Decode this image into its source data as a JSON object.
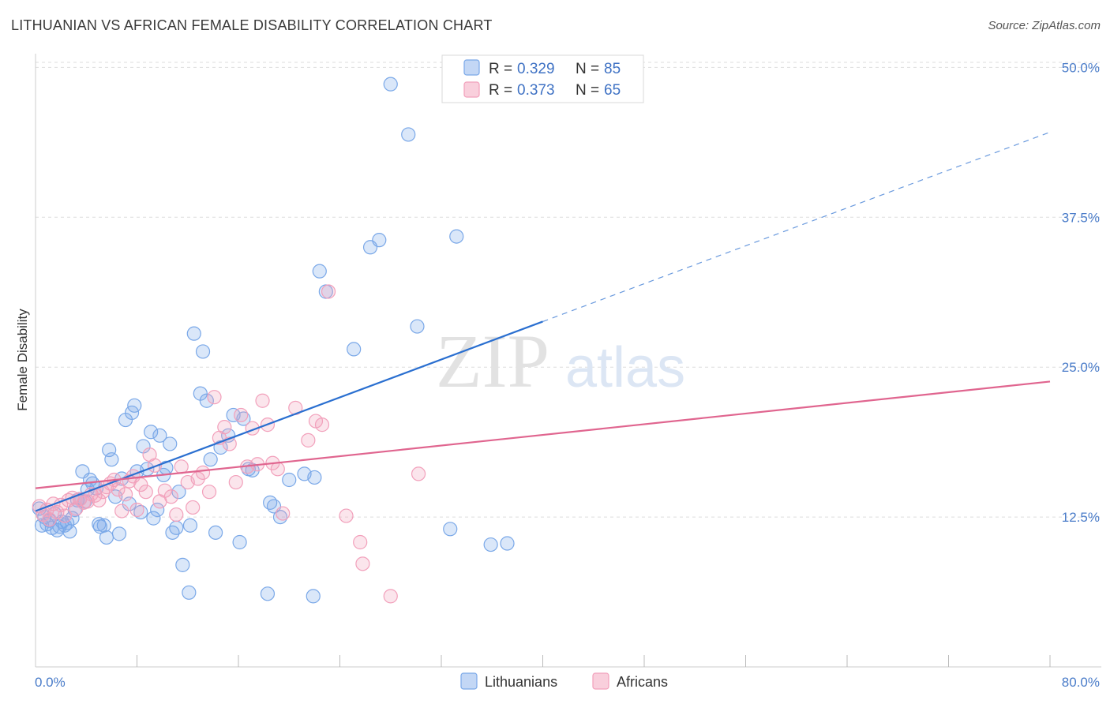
{
  "title": "LITHUANIAN VS AFRICAN FEMALE DISABILITY CORRELATION CHART",
  "source": "Source: ZipAtlas.com",
  "watermark": {
    "zip": "ZIP",
    "atlas": "atlas"
  },
  "colors": {
    "blue": "#7aa8e8",
    "blue_line": "#2a6fd0",
    "pink": "#f2a0bb",
    "pink_line": "#e0658f",
    "tick_text": "#4a7cc9",
    "grid": "#dddddd"
  },
  "legend": {
    "r_label": "R =",
    "n_label": "N =",
    "entries": [
      {
        "r": "0.329",
        "n": "85"
      },
      {
        "r": "0.373",
        "n": "65"
      }
    ]
  },
  "chart_data": {
    "type": "scatter",
    "xlabel": "",
    "ylabel": "Female Disability",
    "xlim": [
      0,
      80
    ],
    "ylim": [
      0,
      52
    ],
    "x_tick_labels": [
      "0.0%",
      "80.0%"
    ],
    "y_ticks": [
      12.5,
      25.0,
      37.5,
      50.0
    ],
    "y_tick_labels": [
      "12.5%",
      "25.0%",
      "37.5%",
      "50.0%"
    ],
    "grid": true,
    "legend_position": "top-center",
    "series": [
      {
        "name": "Lithuanians",
        "color": "#7aa8e8",
        "trend": {
          "x": [
            0,
            40
          ],
          "y": [
            13.0,
            28.8
          ],
          "dashed_to": [
            80,
            44.6
          ]
        },
        "points": [
          [
            0.3,
            13.2
          ],
          [
            0.5,
            11.8
          ],
          [
            0.7,
            12.5
          ],
          [
            0.9,
            11.9
          ],
          [
            1.1,
            12.2
          ],
          [
            1.3,
            11.6
          ],
          [
            1.5,
            12.8
          ],
          [
            1.7,
            11.4
          ],
          [
            1.9,
            11.7
          ],
          [
            2.1,
            12.1
          ],
          [
            2.3,
            11.8
          ],
          [
            2.5,
            12.0
          ],
          [
            2.7,
            11.3
          ],
          [
            2.9,
            12.4
          ],
          [
            3.1,
            13.1
          ],
          [
            3.3,
            13.9
          ],
          [
            3.5,
            14.0
          ],
          [
            3.7,
            16.3
          ],
          [
            3.9,
            13.8
          ],
          [
            4.1,
            14.8
          ],
          [
            4.3,
            15.6
          ],
          [
            4.5,
            15.3
          ],
          [
            4.8,
            14.9
          ],
          [
            5.0,
            11.9
          ],
          [
            5.1,
            11.7
          ],
          [
            5.4,
            11.8
          ],
          [
            5.6,
            10.8
          ],
          [
            5.8,
            18.1
          ],
          [
            6.0,
            17.3
          ],
          [
            6.3,
            14.2
          ],
          [
            6.6,
            11.1
          ],
          [
            6.8,
            15.7
          ],
          [
            7.1,
            20.6
          ],
          [
            7.4,
            13.6
          ],
          [
            7.6,
            21.2
          ],
          [
            7.8,
            21.8
          ],
          [
            8.0,
            16.3
          ],
          [
            8.3,
            12.9
          ],
          [
            8.5,
            18.4
          ],
          [
            8.8,
            16.5
          ],
          [
            9.1,
            19.6
          ],
          [
            9.3,
            12.4
          ],
          [
            9.6,
            13.1
          ],
          [
            9.8,
            19.3
          ],
          [
            10.1,
            16.0
          ],
          [
            10.3,
            16.6
          ],
          [
            10.6,
            18.6
          ],
          [
            10.8,
            11.2
          ],
          [
            11.1,
            11.6
          ],
          [
            11.3,
            14.6
          ],
          [
            11.6,
            8.5
          ],
          [
            12.1,
            6.2
          ],
          [
            12.2,
            11.8
          ],
          [
            12.5,
            27.8
          ],
          [
            13.0,
            22.8
          ],
          [
            13.2,
            26.3
          ],
          [
            13.5,
            22.2
          ],
          [
            13.8,
            17.3
          ],
          [
            14.2,
            11.2
          ],
          [
            14.6,
            18.3
          ],
          [
            15.2,
            19.3
          ],
          [
            15.6,
            21.0
          ],
          [
            16.1,
            10.4
          ],
          [
            16.4,
            20.7
          ],
          [
            16.8,
            16.5
          ],
          [
            17.1,
            16.4
          ],
          [
            18.5,
            13.7
          ],
          [
            18.8,
            13.4
          ],
          [
            19.3,
            12.5
          ],
          [
            20.0,
            15.6
          ],
          [
            21.2,
            16.1
          ],
          [
            22.0,
            15.8
          ],
          [
            21.9,
            5.9
          ],
          [
            18.3,
            6.1
          ],
          [
            22.4,
            33.0
          ],
          [
            22.9,
            31.3
          ],
          [
            25.1,
            26.5
          ],
          [
            26.4,
            35.0
          ],
          [
            27.1,
            35.6
          ],
          [
            28.0,
            48.6
          ],
          [
            29.4,
            44.4
          ],
          [
            30.1,
            28.4
          ],
          [
            32.7,
            11.5
          ],
          [
            33.2,
            35.9
          ],
          [
            35.9,
            10.2
          ],
          [
            37.2,
            10.3
          ]
        ]
      },
      {
        "name": "Africans",
        "color": "#f2a0bb",
        "trend": {
          "x": [
            0,
            80
          ],
          "y": [
            14.9,
            23.8
          ]
        },
        "points": [
          [
            0.3,
            13.4
          ],
          [
            0.6,
            12.7
          ],
          [
            0.9,
            13.1
          ],
          [
            1.1,
            12.3
          ],
          [
            1.4,
            13.6
          ],
          [
            1.7,
            12.9
          ],
          [
            2.0,
            13.5
          ],
          [
            2.3,
            12.6
          ],
          [
            2.6,
            13.9
          ],
          [
            2.9,
            14.1
          ],
          [
            3.2,
            13.2
          ],
          [
            3.5,
            14.0
          ],
          [
            3.8,
            13.7
          ],
          [
            4.1,
            13.8
          ],
          [
            4.4,
            14.4
          ],
          [
            4.7,
            14.3
          ],
          [
            5.0,
            13.9
          ],
          [
            5.3,
            14.6
          ],
          [
            5.6,
            15.0
          ],
          [
            5.9,
            15.3
          ],
          [
            6.2,
            15.6
          ],
          [
            6.5,
            14.8
          ],
          [
            6.8,
            13.0
          ],
          [
            7.1,
            14.4
          ],
          [
            7.4,
            15.5
          ],
          [
            7.7,
            15.9
          ],
          [
            8.0,
            13.1
          ],
          [
            8.3,
            15.2
          ],
          [
            8.7,
            14.6
          ],
          [
            9.0,
            17.7
          ],
          [
            9.4,
            16.8
          ],
          [
            9.8,
            13.8
          ],
          [
            10.2,
            14.7
          ],
          [
            10.7,
            14.2
          ],
          [
            11.1,
            12.7
          ],
          [
            11.5,
            16.7
          ],
          [
            12.0,
            15.4
          ],
          [
            12.4,
            13.3
          ],
          [
            12.8,
            15.7
          ],
          [
            13.2,
            16.2
          ],
          [
            13.7,
            14.6
          ],
          [
            14.1,
            22.5
          ],
          [
            14.5,
            19.1
          ],
          [
            14.9,
            20.0
          ],
          [
            15.3,
            18.6
          ],
          [
            15.8,
            15.4
          ],
          [
            16.2,
            21.0
          ],
          [
            16.7,
            16.7
          ],
          [
            17.1,
            19.9
          ],
          [
            17.5,
            16.9
          ],
          [
            17.9,
            22.2
          ],
          [
            18.3,
            20.2
          ],
          [
            18.7,
            17.0
          ],
          [
            19.1,
            16.5
          ],
          [
            19.5,
            12.8
          ],
          [
            20.5,
            21.6
          ],
          [
            21.5,
            18.9
          ],
          [
            22.1,
            20.5
          ],
          [
            22.6,
            20.2
          ],
          [
            23.1,
            31.3
          ],
          [
            24.5,
            12.6
          ],
          [
            25.6,
            10.4
          ],
          [
            25.8,
            8.6
          ],
          [
            28.0,
            5.9
          ],
          [
            30.2,
            16.1
          ]
        ]
      }
    ]
  },
  "bottom_legend": [
    "Lithuanians",
    "Africans"
  ]
}
